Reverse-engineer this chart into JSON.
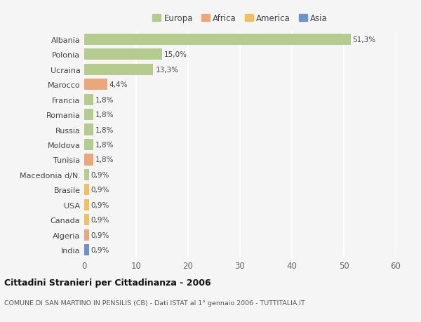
{
  "categories": [
    "Albania",
    "Polonia",
    "Ucraina",
    "Marocco",
    "Francia",
    "Romania",
    "Russia",
    "Moldova",
    "Tunisia",
    "Macedonia d/N.",
    "Brasile",
    "USA",
    "Canada",
    "Algeria",
    "India"
  ],
  "values": [
    51.3,
    15.0,
    13.3,
    4.4,
    1.8,
    1.8,
    1.8,
    1.8,
    1.8,
    0.9,
    0.9,
    0.9,
    0.9,
    0.9,
    0.9
  ],
  "labels": [
    "51,3%",
    "15,0%",
    "13,3%",
    "4,4%",
    "1,8%",
    "1,8%",
    "1,8%",
    "1,8%",
    "1,8%",
    "0,9%",
    "0,9%",
    "0,9%",
    "0,9%",
    "0,9%",
    "0,9%"
  ],
  "colors": [
    "#b5cc8e",
    "#b5cc8e",
    "#b5cc8e",
    "#e8a87c",
    "#b5cc8e",
    "#b5cc8e",
    "#b5cc8e",
    "#b5cc8e",
    "#e8a87c",
    "#b5cc8e",
    "#f0c060",
    "#f0c060",
    "#f0c060",
    "#e8a87c",
    "#7090c8"
  ],
  "legend_labels": [
    "Europa",
    "Africa",
    "America",
    "Asia"
  ],
  "legend_colors": [
    "#b5cc8e",
    "#e8a87c",
    "#f0c060",
    "#7090c8"
  ],
  "xlim": [
    0,
    60
  ],
  "xticks": [
    0,
    10,
    20,
    30,
    40,
    50,
    60
  ],
  "title": "Cittadini Stranieri per Cittadinanza - 2006",
  "subtitle": "COMUNE DI SAN MARTINO IN PENSILIS (CB) - Dati ISTAT al 1° gennaio 2006 - TUTTITALIA.IT",
  "bg_color": "#f5f5f5",
  "grid_color": "#ffffff",
  "bar_height": 0.75
}
